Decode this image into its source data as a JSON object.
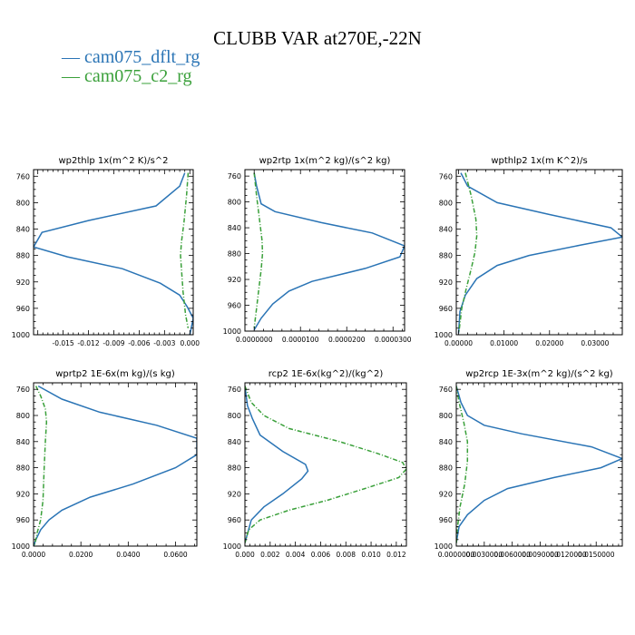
{
  "title": "CLUBB VAR at270E,-22N",
  "colors": {
    "dflt": "#2a74b5",
    "c2": "#3aa03a"
  },
  "legend": [
    {
      "label": "cam075_dflt_rg",
      "color": "#2a74b5",
      "dash": "solid"
    },
    {
      "label": "cam075_c2_rg",
      "color": "#3aa03a",
      "dash": "dashdot"
    }
  ],
  "chart_data": [
    {
      "type": "line",
      "title": "wp2thlp   1x(m^2 K)/s^2",
      "ylim": [
        1000,
        750
      ],
      "yticks": [
        760,
        800,
        840,
        880,
        920,
        960,
        1000
      ],
      "ytick_labels": [
        "760",
        "800",
        "840",
        "880",
        "920",
        "960",
        "1000"
      ],
      "xlim": [
        -0.0185,
        0.0004
      ],
      "xticks": [
        -0.015,
        -0.012,
        -0.009,
        -0.006,
        -0.003,
        0.0
      ],
      "xtick_labels": [
        "-0.015",
        "-0.012",
        "-0.009",
        "-0.006",
        "-0.003",
        "0.000"
      ],
      "series": [
        {
          "name": "cam075_dflt_rg",
          "x": [
            -0.0006,
            -0.0012,
            -0.004,
            -0.012,
            -0.0175,
            -0.0185,
            -0.0145,
            -0.008,
            -0.0035,
            -0.0012,
            -0.0003,
            0.0004,
            0.0
          ],
          "y": [
            755,
            775,
            805,
            827,
            845,
            867,
            882,
            900,
            922,
            940,
            958,
            975,
            1000
          ]
        },
        {
          "name": "cam075_c2_rg",
          "x": [
            -0.0002,
            -0.0004,
            -0.0007,
            -0.001,
            -0.0011,
            -0.001,
            -0.0008,
            -0.0005,
            -0.0002
          ],
          "y": [
            755,
            790,
            830,
            860,
            880,
            900,
            935,
            970,
            990
          ]
        }
      ]
    },
    {
      "type": "line",
      "title": "wp2rtp   1x(m^2 kg)/(s^2 kg)",
      "ylim": [
        1000,
        750
      ],
      "yticks": [
        760,
        800,
        840,
        880,
        920,
        960,
        1000
      ],
      "ytick_labels": [
        "760",
        "800",
        "840",
        "880",
        "920",
        "960",
        "1000"
      ],
      "xlim": [
        -2e-06,
        3.25e-05
      ],
      "xticks": [
        0.0,
        1e-05,
        2e-05,
        3e-05
      ],
      "xtick_labels": [
        "0.0000000",
        "0.0000100",
        "0.0000200",
        "0.0000300"
      ],
      "series": [
        {
          "name": "cam075_dflt_rg",
          "x": [
            0.0,
            5e-07,
            1.5e-06,
            4.5e-06,
            1.45e-05,
            2.55e-05,
            3.25e-05,
            3.15e-05,
            2.4e-05,
            1.25e-05,
            7.5e-06,
            4e-06,
            1.5e-06,
            0.0
          ],
          "y": [
            755,
            775,
            803,
            815,
            832,
            848,
            868,
            885,
            903,
            923,
            938,
            958,
            980,
            998
          ]
        },
        {
          "name": "cam075_c2_rg",
          "x": [
            0.0,
            5e-07,
            1.2e-06,
            1.7e-06,
            1.8e-06,
            1.5e-06,
            1e-06,
            5e-07,
            0.0
          ],
          "y": [
            755,
            790,
            830,
            860,
            880,
            905,
            935,
            965,
            995
          ]
        }
      ]
    },
    {
      "type": "line",
      "title": "wpthlp2   1x(m K^2)/s",
      "ylim": [
        1000,
        750
      ],
      "yticks": [
        760,
        800,
        840,
        880,
        920,
        960,
        1000
      ],
      "ytick_labels": [
        "760",
        "800",
        "840",
        "880",
        "920",
        "960",
        "1000"
      ],
      "xlim": [
        -0.0005,
        0.036
      ],
      "xticks": [
        0.0,
        0.01,
        0.02,
        0.03
      ],
      "xtick_labels": [
        "0.00000",
        "0.01000",
        "0.02000",
        "0.03000"
      ],
      "series": [
        {
          "name": "cam075_dflt_rg",
          "x": [
            0.0005,
            0.002,
            0.0085,
            0.02,
            0.0335,
            0.036,
            0.027,
            0.0155,
            0.0085,
            0.004,
            0.0015,
            0.0003,
            0.0
          ],
          "y": [
            755,
            775,
            800,
            818,
            838,
            852,
            864,
            880,
            895,
            915,
            940,
            965,
            998
          ]
        },
        {
          "name": "cam075_c2_rg",
          "x": [
            0.0015,
            0.0028,
            0.0038,
            0.004,
            0.0036,
            0.0028,
            0.0017,
            0.0007,
            0.0001
          ],
          "y": [
            755,
            790,
            825,
            850,
            875,
            900,
            930,
            960,
            995
          ]
        }
      ]
    },
    {
      "type": "line",
      "title": "wprtp2   1E-6x(m kg)/(s kg)",
      "ylim": [
        1000,
        750
      ],
      "yticks": [
        760,
        800,
        840,
        880,
        920,
        960,
        1000
      ],
      "ytick_labels": [
        "760",
        "800",
        "840",
        "880",
        "920",
        "960",
        "1000"
      ],
      "xlim": [
        0.0,
        0.069
      ],
      "xticks": [
        0.0,
        0.02,
        0.04,
        0.06
      ],
      "xtick_labels": [
        "0.0000",
        "0.0200",
        "0.0400",
        "0.0600"
      ],
      "series": [
        {
          "name": "cam075_dflt_rg",
          "x": [
            0.002,
            0.012,
            0.028,
            0.052,
            0.069,
            0.069,
            0.06,
            0.042,
            0.024,
            0.012,
            0.0065,
            0.003,
            0.001,
            0.0
          ],
          "y": [
            755,
            775,
            795,
            815,
            835,
            860,
            880,
            905,
            925,
            945,
            960,
            975,
            990,
            1000
          ]
        },
        {
          "name": "cam075_c2_rg",
          "x": [
            0.001,
            0.003,
            0.005,
            0.0055,
            0.005,
            0.0045,
            0.004,
            0.003,
            0.0015,
            0.0005
          ],
          "y": [
            755,
            770,
            790,
            810,
            840,
            880,
            930,
            960,
            980,
            998
          ]
        }
      ]
    },
    {
      "type": "line",
      "title": "rcp2   1E-6x(kg^2)/(kg^2)",
      "ylim": [
        1000,
        750
      ],
      "yticks": [
        760,
        800,
        840,
        880,
        920,
        960,
        1000
      ],
      "ytick_labels": [
        "760",
        "800",
        "840",
        "880",
        "920",
        "960",
        "1000"
      ],
      "xlim": [
        0.0,
        0.0128
      ],
      "xticks": [
        0.0,
        0.002,
        0.004,
        0.006,
        0.008,
        0.01,
        0.012
      ],
      "xtick_labels": [
        "0.000",
        "0.002",
        "0.004",
        "0.006",
        "0.008",
        "0.010",
        "0.012"
      ],
      "series": [
        {
          "name": "cam075_dflt_rg",
          "x": [
            0.0,
            0.0002,
            0.0006,
            0.0012,
            0.003,
            0.0048,
            0.005,
            0.0045,
            0.003,
            0.0015,
            0.0005,
            0.0
          ],
          "y": [
            755,
            785,
            805,
            830,
            855,
            875,
            885,
            897,
            920,
            940,
            960,
            995
          ]
        },
        {
          "name": "cam075_c2_rg",
          "x": [
            0.0,
            0.0005,
            0.0015,
            0.0035,
            0.0075,
            0.0105,
            0.0125,
            0.0128,
            0.0122,
            0.0095,
            0.0065,
            0.0035,
            0.0012,
            0.0003,
            0.0
          ],
          "y": [
            755,
            780,
            800,
            820,
            840,
            858,
            872,
            882,
            895,
            912,
            930,
            945,
            960,
            975,
            995
          ]
        }
      ]
    },
    {
      "type": "line",
      "title": "wp2rcp   1E-3x(m^2 kg)/(s^2 kg)",
      "ylim": [
        1000,
        750
      ],
      "yticks": [
        760,
        800,
        840,
        880,
        920,
        960,
        1000
      ],
      "ytick_labels": [
        "760",
        "800",
        "840",
        "880",
        "920",
        "960",
        "1000"
      ],
      "xlim": [
        0.0,
        0.0178
      ],
      "xticks": [
        0.0,
        0.003,
        0.006,
        0.009,
        0.012,
        0.015
      ],
      "xtick_labels": [
        "0.0000000",
        "0.0030000",
        "0.0060000",
        "0.0090000",
        "0.0120000",
        "0.0150000"
      ],
      "series": [
        {
          "name": "cam075_dflt_rg",
          "x": [
            0.0,
            0.0005,
            0.0012,
            0.003,
            0.007,
            0.0145,
            0.0178,
            0.0155,
            0.0105,
            0.0055,
            0.003,
            0.0012,
            0.0003,
            0.0
          ],
          "y": [
            755,
            780,
            800,
            815,
            828,
            848,
            866,
            880,
            895,
            912,
            930,
            952,
            970,
            995
          ]
        },
        {
          "name": "cam075_c2_rg",
          "x": [
            0.0,
            0.0003,
            0.0008,
            0.0012,
            0.0012,
            0.0009,
            0.0004,
            0.0001,
            0.0
          ],
          "y": [
            755,
            780,
            810,
            840,
            870,
            905,
            940,
            975,
            998
          ]
        }
      ]
    }
  ]
}
